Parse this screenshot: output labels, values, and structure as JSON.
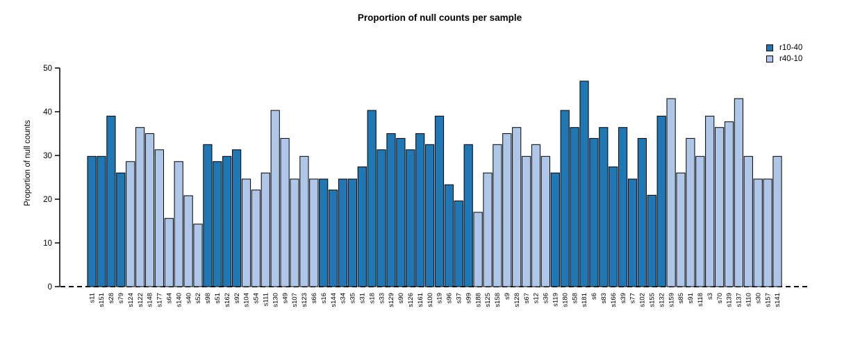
{
  "chart_data": {
    "type": "bar",
    "title": "Proportion of null counts per sample",
    "xlabel": "",
    "ylabel": "Proportion of null counts",
    "ylim": [
      0,
      50
    ],
    "yticks": [
      0,
      10,
      20,
      30,
      40,
      50
    ],
    "grid": false,
    "legend_position": "top-right",
    "baseline_style": "dashed",
    "series": [
      {
        "name": "r10-40",
        "color": "#1f77b4"
      },
      {
        "name": "r40-10",
        "color": "#aec7e8"
      }
    ],
    "bars": [
      {
        "label": "s11",
        "value": 29.8,
        "series": "r10-40"
      },
      {
        "label": "s151",
        "value": 29.8,
        "series": "r10-40"
      },
      {
        "label": "s28",
        "value": 39.0,
        "series": "r10-40"
      },
      {
        "label": "s79",
        "value": 26.0,
        "series": "r10-40"
      },
      {
        "label": "s124",
        "value": 28.6,
        "series": "r40-10"
      },
      {
        "label": "s122",
        "value": 36.4,
        "series": "r40-10"
      },
      {
        "label": "s148",
        "value": 35.0,
        "series": "r40-10"
      },
      {
        "label": "s177",
        "value": 31.3,
        "series": "r40-10"
      },
      {
        "label": "s64",
        "value": 15.6,
        "series": "r40-10"
      },
      {
        "label": "s140",
        "value": 28.6,
        "series": "r40-10"
      },
      {
        "label": "s40",
        "value": 20.8,
        "series": "r40-10"
      },
      {
        "label": "s52",
        "value": 14.3,
        "series": "r40-10"
      },
      {
        "label": "s98",
        "value": 32.5,
        "series": "r10-40"
      },
      {
        "label": "s51",
        "value": 28.6,
        "series": "r10-40"
      },
      {
        "label": "s162",
        "value": 29.8,
        "series": "r10-40"
      },
      {
        "label": "s92",
        "value": 31.3,
        "series": "r10-40"
      },
      {
        "label": "s104",
        "value": 24.6,
        "series": "r40-10"
      },
      {
        "label": "s54",
        "value": 22.1,
        "series": "r40-10"
      },
      {
        "label": "s111",
        "value": 26.0,
        "series": "r40-10"
      },
      {
        "label": "s130",
        "value": 40.3,
        "series": "r40-10"
      },
      {
        "label": "s49",
        "value": 33.9,
        "series": "r40-10"
      },
      {
        "label": "s107",
        "value": 24.6,
        "series": "r40-10"
      },
      {
        "label": "s123",
        "value": 29.8,
        "series": "r40-10"
      },
      {
        "label": "s66",
        "value": 24.6,
        "series": "r40-10"
      },
      {
        "label": "s16",
        "value": 24.6,
        "series": "r10-40"
      },
      {
        "label": "s144",
        "value": 22.1,
        "series": "r10-40"
      },
      {
        "label": "s34",
        "value": 24.6,
        "series": "r10-40"
      },
      {
        "label": "s35",
        "value": 24.6,
        "series": "r10-40"
      },
      {
        "label": "s31",
        "value": 27.4,
        "series": "r10-40"
      },
      {
        "label": "s18",
        "value": 40.3,
        "series": "r10-40"
      },
      {
        "label": "s33",
        "value": 31.3,
        "series": "r10-40"
      },
      {
        "label": "s129",
        "value": 35.0,
        "series": "r10-40"
      },
      {
        "label": "s90",
        "value": 33.9,
        "series": "r10-40"
      },
      {
        "label": "s126",
        "value": 31.3,
        "series": "r10-40"
      },
      {
        "label": "s161",
        "value": 35.0,
        "series": "r10-40"
      },
      {
        "label": "s100",
        "value": 32.5,
        "series": "r10-40"
      },
      {
        "label": "s19",
        "value": 39.0,
        "series": "r10-40"
      },
      {
        "label": "s96",
        "value": 23.3,
        "series": "r10-40"
      },
      {
        "label": "s37",
        "value": 19.6,
        "series": "r10-40"
      },
      {
        "label": "s99",
        "value": 32.5,
        "series": "r10-40"
      },
      {
        "label": "s188",
        "value": 17.0,
        "series": "r40-10"
      },
      {
        "label": "s125",
        "value": 26.0,
        "series": "r40-10"
      },
      {
        "label": "s158",
        "value": 32.5,
        "series": "r40-10"
      },
      {
        "label": "s9",
        "value": 35.0,
        "series": "r40-10"
      },
      {
        "label": "s128",
        "value": 36.4,
        "series": "r40-10"
      },
      {
        "label": "s67",
        "value": 29.8,
        "series": "r40-10"
      },
      {
        "label": "s12",
        "value": 32.5,
        "series": "r40-10"
      },
      {
        "label": "s36",
        "value": 29.8,
        "series": "r40-10"
      },
      {
        "label": "s119",
        "value": 26.0,
        "series": "r10-40"
      },
      {
        "label": "s180",
        "value": 40.3,
        "series": "r10-40"
      },
      {
        "label": "s58",
        "value": 36.4,
        "series": "r10-40"
      },
      {
        "label": "s181",
        "value": 47.0,
        "series": "r10-40"
      },
      {
        "label": "s6",
        "value": 33.9,
        "series": "r10-40"
      },
      {
        "label": "s83",
        "value": 36.4,
        "series": "r10-40"
      },
      {
        "label": "s166",
        "value": 27.4,
        "series": "r10-40"
      },
      {
        "label": "s39",
        "value": 36.4,
        "series": "r10-40"
      },
      {
        "label": "s77",
        "value": 24.6,
        "series": "r10-40"
      },
      {
        "label": "s102",
        "value": 33.9,
        "series": "r10-40"
      },
      {
        "label": "s155",
        "value": 20.9,
        "series": "r10-40"
      },
      {
        "label": "s132",
        "value": 39.0,
        "series": "r10-40"
      },
      {
        "label": "s159",
        "value": 43.0,
        "series": "r40-10"
      },
      {
        "label": "s85",
        "value": 26.0,
        "series": "r40-10"
      },
      {
        "label": "s91",
        "value": 33.9,
        "series": "r40-10"
      },
      {
        "label": "s118",
        "value": 29.8,
        "series": "r40-10"
      },
      {
        "label": "s3",
        "value": 39.0,
        "series": "r40-10"
      },
      {
        "label": "s70",
        "value": 36.4,
        "series": "r40-10"
      },
      {
        "label": "s139",
        "value": 37.7,
        "series": "r40-10"
      },
      {
        "label": "s137",
        "value": 43.0,
        "series": "r40-10"
      },
      {
        "label": "s110",
        "value": 29.8,
        "series": "r40-10"
      },
      {
        "label": "s30",
        "value": 24.6,
        "series": "r40-10"
      },
      {
        "label": "s157",
        "value": 24.6,
        "series": "r40-10"
      },
      {
        "label": "s141",
        "value": 29.8,
        "series": "r40-10"
      }
    ]
  }
}
